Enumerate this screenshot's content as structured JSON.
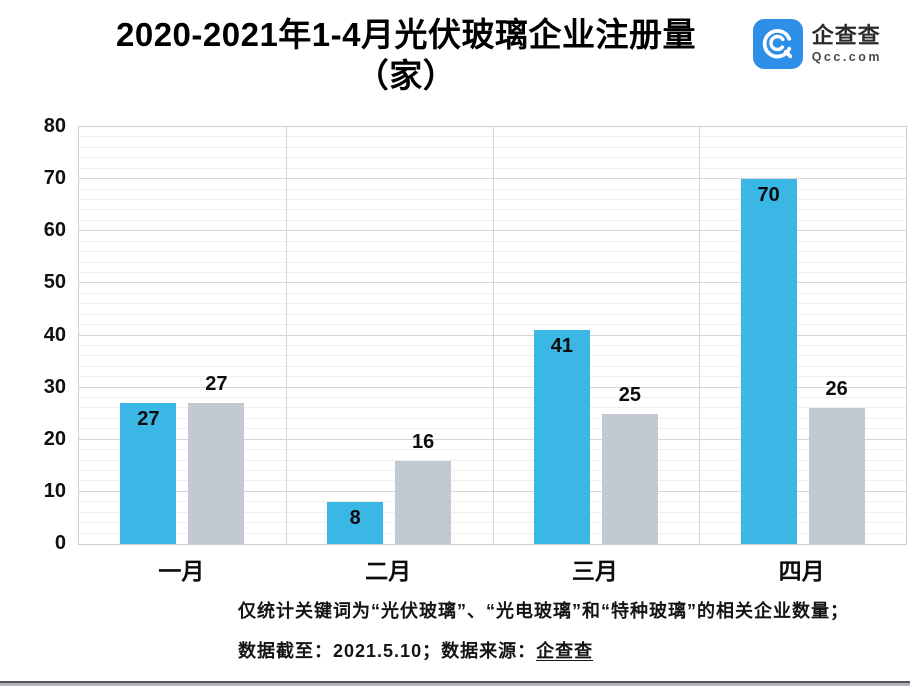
{
  "header": {
    "title_line1": "2020-2021年1-4月光伏玻璃企业注册量",
    "title_line2": "（家）"
  },
  "logo": {
    "name": "企查查",
    "domain": "Qcc.com",
    "icon_color": "#2E8FE8"
  },
  "chart_data": {
    "type": "bar",
    "title": "2020-2021年1-4月光伏玻璃企业注册量（家）",
    "categories": [
      "一月",
      "二月",
      "三月",
      "四月"
    ],
    "series": [
      {
        "name": "blue",
        "color": "#3BB7E5",
        "values": [
          27,
          8,
          41,
          70
        ],
        "label_position": "inside-top"
      },
      {
        "name": "gray",
        "color": "#C3C9D1",
        "values": [
          27,
          16,
          25,
          26
        ],
        "label_position": "above"
      }
    ],
    "ylim": [
      0,
      80
    ],
    "y_major_step": 10,
    "y_minor_step": 2,
    "grid": true,
    "legend_position": "none",
    "xlabel": "",
    "ylabel": ""
  },
  "footer": {
    "line1": "仅统计关键词为“光伏玻璃”、“光电玻璃”和“特种玻璃”的相关企业数量；",
    "line2_prefix": "数据截至：2021.5.10；数据来源：",
    "line2_source": "企查查"
  }
}
